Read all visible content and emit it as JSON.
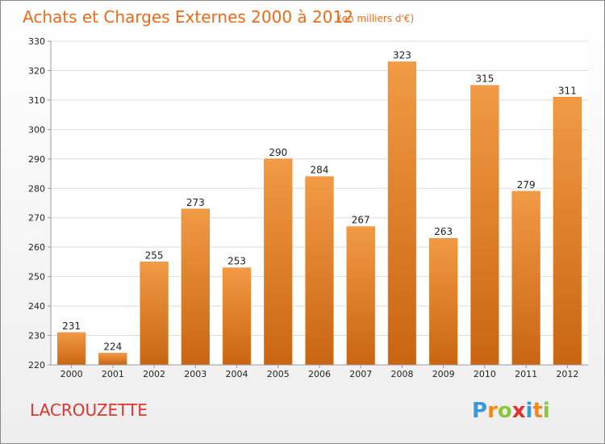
{
  "chart_data": {
    "type": "bar",
    "title": "Achats et Charges Externes 2000 à 2012",
    "subtitle": "(en milliers d'€)",
    "categories": [
      "2000",
      "2001",
      "2002",
      "2003",
      "2004",
      "2005",
      "2006",
      "2007",
      "2008",
      "2009",
      "2010",
      "2011",
      "2012"
    ],
    "values": [
      231,
      224,
      255,
      273,
      253,
      290,
      284,
      267,
      323,
      263,
      315,
      279,
      311
    ],
    "ylim": [
      220,
      330
    ],
    "yticks": [
      220,
      230,
      240,
      250,
      260,
      270,
      280,
      290,
      300,
      310,
      320,
      330
    ],
    "grid": true,
    "legend": "none",
    "bar_color": "#f29a45",
    "bar_color_dark": "#c96512"
  },
  "commune": "LACROUZETTE",
  "brand": {
    "letters": [
      "P",
      "r",
      "o",
      "x",
      "i",
      "t",
      "i"
    ],
    "colors": [
      "#3a9ad9",
      "#f28a1a",
      "#8cc63f",
      "#e2302c",
      "#3a9ad9",
      "#f28a1a",
      "#8cc63f"
    ],
    "icon": "proxiti-logo-icon"
  }
}
